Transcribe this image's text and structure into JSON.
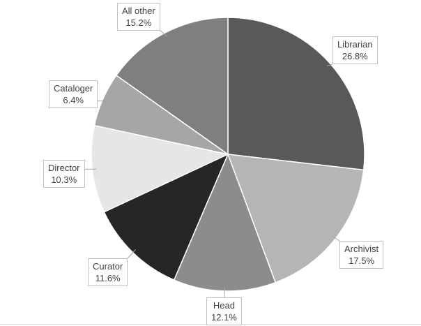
{
  "chart_data": {
    "type": "pie",
    "title": "",
    "start_angle_deg": 0,
    "direction": "clockwise",
    "border_color": "#ffffff",
    "slices": [
      {
        "label": "Librarian",
        "value": 26.8,
        "value_label": "26.8%",
        "color": "#595959"
      },
      {
        "label": "Archivist",
        "value": 17.5,
        "value_label": "17.5%",
        "color": "#b5b5b5"
      },
      {
        "label": "Head",
        "value": 12.1,
        "value_label": "12.1%",
        "color": "#8c8c8c"
      },
      {
        "label": "Curator",
        "value": 11.6,
        "value_label": "11.6%",
        "color": "#262626"
      },
      {
        "label": "Director",
        "value": 10.3,
        "value_label": "10.3%",
        "color": "#e6e6e6"
      },
      {
        "label": "Cataloger",
        "value": 6.4,
        "value_label": "6.4%",
        "color": "#a6a6a6"
      },
      {
        "label": "All other",
        "value": 15.2,
        "value_label": "15.2%",
        "color": "#7f7f7f"
      }
    ]
  }
}
